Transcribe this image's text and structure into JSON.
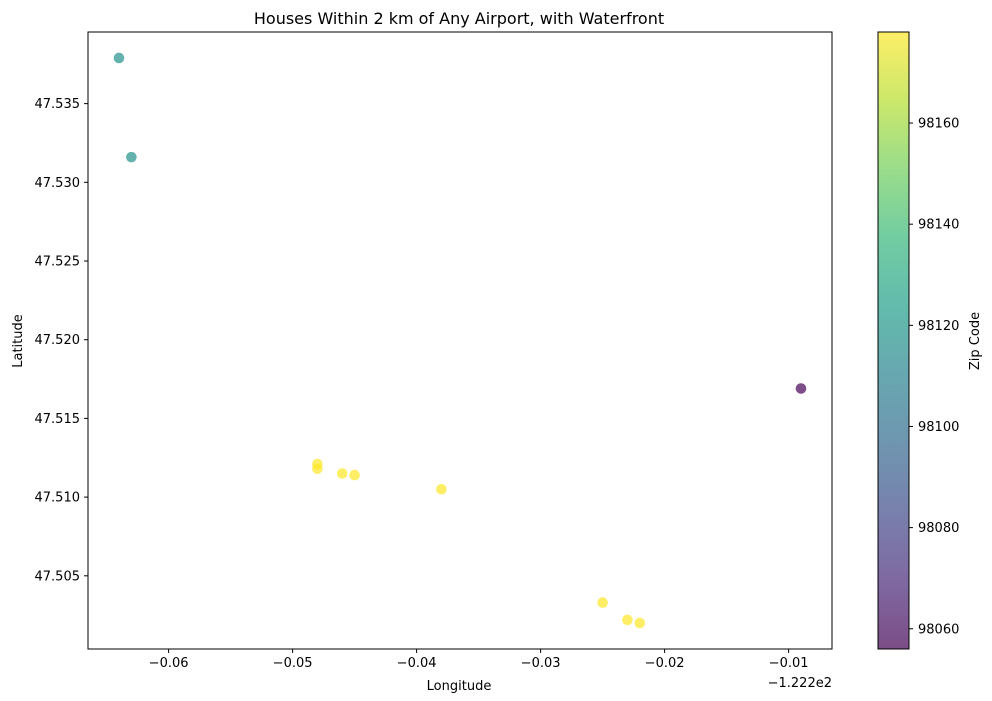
{
  "chart_data": {
    "type": "scatter",
    "title": "Houses Within 2 km of Any Airport, with Waterfront",
    "xlabel": "Longitude",
    "ylabel": "Latitude",
    "x_offset_label": "−1.222e2",
    "x_ticks": [
      -0.06,
      -0.05,
      -0.04,
      -0.03,
      -0.02,
      -0.01
    ],
    "x_tick_labels": [
      "−0.06",
      "−0.05",
      "−0.04",
      "−0.03",
      "−0.02",
      "−0.01"
    ],
    "y_ticks": [
      47.505,
      47.51,
      47.515,
      47.52,
      47.525,
      47.53,
      47.535
    ],
    "y_tick_labels": [
      "47.505",
      "47.510",
      "47.515",
      "47.520",
      "47.525",
      "47.530",
      "47.535"
    ],
    "xlim": [
      -0.0665,
      -0.0065
    ],
    "ylim": [
      47.50035,
      47.53955
    ],
    "grid": false,
    "colorbar": {
      "label": "Zip Code",
      "range": [
        98056,
        98178
      ],
      "ticks": [
        98060,
        98080,
        98100,
        98120,
        98140,
        98160
      ],
      "colormap": "viridis"
    },
    "marker_alpha": 0.7,
    "points": [
      {
        "x": -0.064,
        "y": 47.5379,
        "zip": 98118
      },
      {
        "x": -0.063,
        "y": 47.5316,
        "zip": 98118
      },
      {
        "x": -0.009,
        "y": 47.5169,
        "zip": 98056
      },
      {
        "x": -0.048,
        "y": 47.5121,
        "zip": 98178
      },
      {
        "x": -0.048,
        "y": 47.5118,
        "zip": 98178
      },
      {
        "x": -0.046,
        "y": 47.5115,
        "zip": 98178
      },
      {
        "x": -0.045,
        "y": 47.5114,
        "zip": 98178
      },
      {
        "x": -0.038,
        "y": 47.5105,
        "zip": 98178
      },
      {
        "x": -0.025,
        "y": 47.5033,
        "zip": 98178
      },
      {
        "x": -0.023,
        "y": 47.5022,
        "zip": 98178
      },
      {
        "x": -0.022,
        "y": 47.502,
        "zip": 98178
      }
    ]
  }
}
